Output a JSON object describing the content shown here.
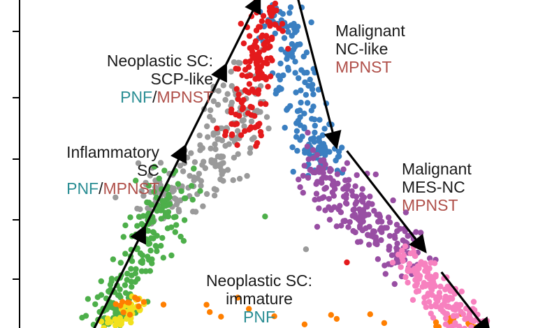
{
  "chart_data": {
    "type": "scatter",
    "colors": {
      "text": "#1a1a1a",
      "pnf": "#2b8e94",
      "mpnst": "#b0504a",
      "arrow": "#000000",
      "frame": "#000000"
    },
    "labels": [
      {
        "id": "scp-like",
        "lines": [
          "Neoplastic SC:",
          "SCP-like"
        ],
        "tags": [
          {
            "text": "PNF",
            "kind": "pnf"
          },
          {
            "text": "/",
            "kind": "text"
          },
          {
            "text": "MPNST",
            "kind": "mpnst"
          }
        ]
      },
      {
        "id": "inflammatory",
        "lines": [
          "Inflammatory",
          "SC"
        ],
        "tags": [
          {
            "text": "PNF",
            "kind": "pnf"
          },
          {
            "text": "/",
            "kind": "text"
          },
          {
            "text": "MPNST",
            "kind": "mpnst"
          }
        ]
      },
      {
        "id": "nc-like",
        "lines": [
          "Malignant",
          "NC-like"
        ],
        "tags": [
          {
            "text": "MPNST",
            "kind": "mpnst"
          }
        ]
      },
      {
        "id": "mes-nc",
        "lines": [
          "Malignant",
          "MES-NC"
        ],
        "tags": [
          {
            "text": "MPNST",
            "kind": "mpnst"
          }
        ]
      },
      {
        "id": "immature",
        "lines": [
          "Neoplastic SC:",
          "immature"
        ],
        "tags": [
          {
            "text": "PNF",
            "kind": "pnf"
          }
        ]
      }
    ],
    "clusters": [
      {
        "id": "red",
        "color": "#e41a1c",
        "path": [
          [
            0.49,
            0.99
          ],
          [
            0.47,
            0.85
          ],
          [
            0.45,
            0.7
          ],
          [
            0.43,
            0.57
          ]
        ],
        "count": 140,
        "spread": 0.025
      },
      {
        "id": "blue",
        "color": "#3a7fc1",
        "path": [
          [
            0.51,
            0.99
          ],
          [
            0.53,
            0.82
          ],
          [
            0.56,
            0.68
          ],
          [
            0.58,
            0.55
          ],
          [
            0.6,
            0.5
          ]
        ],
        "count": 170,
        "spread": 0.03
      },
      {
        "id": "gray",
        "color": "#9a9a9a",
        "path": [
          [
            0.44,
            0.78
          ],
          [
            0.42,
            0.62
          ],
          [
            0.38,
            0.49
          ],
          [
            0.3,
            0.42
          ],
          [
            0.28,
            0.38
          ]
        ],
        "count": 200,
        "spread": 0.04
      },
      {
        "id": "green",
        "color": "#4daf4a",
        "path": [
          [
            0.31,
            0.44
          ],
          [
            0.28,
            0.36
          ],
          [
            0.24,
            0.24
          ],
          [
            0.19,
            0.08
          ],
          [
            0.18,
            0.02
          ]
        ],
        "count": 200,
        "spread": 0.03
      },
      {
        "id": "purple",
        "color": "#984ea3",
        "path": [
          [
            0.57,
            0.5
          ],
          [
            0.63,
            0.39
          ],
          [
            0.7,
            0.31
          ],
          [
            0.76,
            0.2
          ]
        ],
        "count": 210,
        "spread": 0.035
      },
      {
        "id": "pink",
        "color": "#f781bf",
        "path": [
          [
            0.76,
            0.22
          ],
          [
            0.8,
            0.14
          ],
          [
            0.84,
            0.06
          ],
          [
            0.89,
            0.01
          ]
        ],
        "count": 160,
        "spread": 0.025
      },
      {
        "id": "orange",
        "color": "#ff7f00",
        "path": [
          [
            0.19,
            0.05
          ],
          [
            0.22,
            0.08
          ],
          [
            0.84,
            0.02
          ],
          [
            0.9,
            0.0
          ]
        ],
        "count": 40,
        "spread": 0.015
      },
      {
        "id": "yellow",
        "color": "#f2e11d",
        "path": [
          [
            0.18,
            0.01
          ],
          [
            0.21,
            0.04
          ],
          [
            0.23,
            0.07
          ]
        ],
        "count": 40,
        "spread": 0.012
      }
    ],
    "stray_points": [
      {
        "x": 0.64,
        "y": 0.2,
        "color": "#e41a1c"
      },
      {
        "x": 0.61,
        "y": 0.62,
        "color": "#3a7fc1"
      },
      {
        "x": 0.63,
        "y": 0.55,
        "color": "#3a7fc1"
      },
      {
        "x": 0.62,
        "y": 0.31,
        "color": "#984ea3"
      },
      {
        "x": 0.48,
        "y": 0.34,
        "color": "#4daf4a"
      },
      {
        "x": 0.56,
        "y": 0.24,
        "color": "#9a9a9a"
      }
    ],
    "arrows": [
      {
        "id": "bottom-left-to-top",
        "from": [
          0.14,
          -0.02
        ],
        "to": [
          0.47,
          1.01
        ]
      },
      {
        "id": "top-to-bottom-right",
        "from": [
          0.54,
          1.03
        ],
        "to": [
          0.62,
          0.55
        ]
      },
      {
        "id": "mid-to-bottom-right",
        "from": [
          0.64,
          0.54
        ],
        "to": [
          0.92,
          -0.02
        ]
      }
    ],
    "grid": false,
    "xlabel": "",
    "ylabel": ""
  }
}
